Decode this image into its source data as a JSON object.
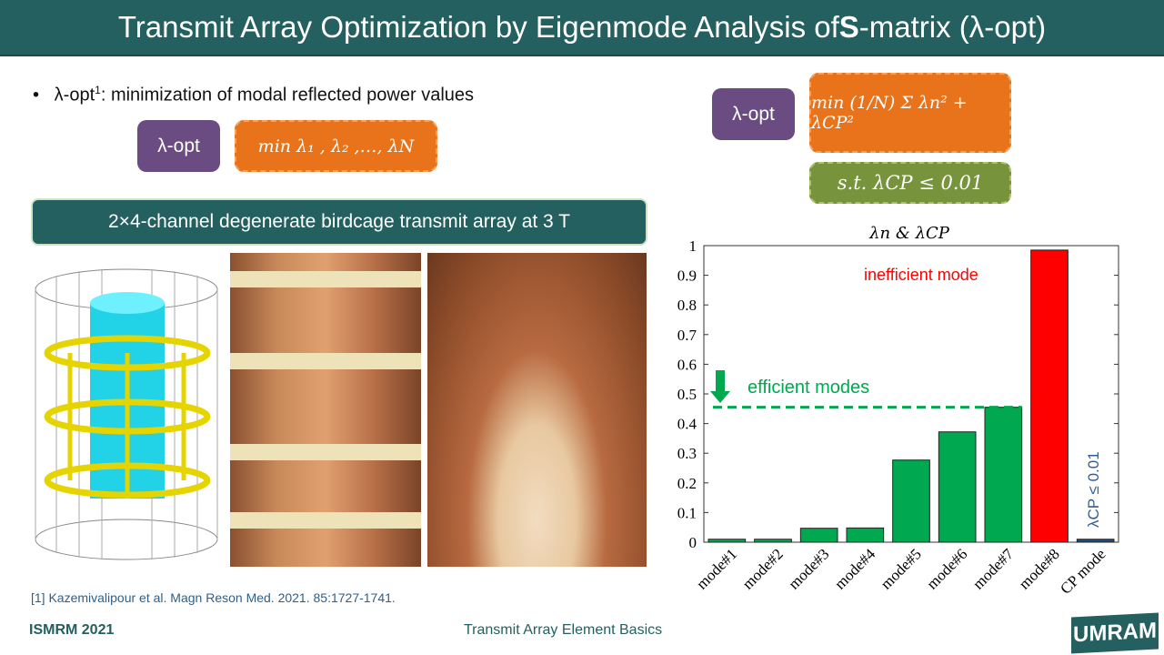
{
  "header": {
    "title_pre": "Transmit Array Optimization by Eigenmode Analysis of ",
    "title_bold": "S",
    "title_post": "-matrix (λ-opt)"
  },
  "bullet": {
    "text": "λ-opt",
    "sup": "1",
    "rest": ": minimization of modal reflected power values"
  },
  "left_formula": {
    "label": "λ-opt",
    "expr": "min   λ₁ , λ₂ ,…, λN"
  },
  "right_formula": {
    "label": "λ-opt",
    "expr": "min  (1/N) Σ λn² + λCP²",
    "constraint": "s.t.   λCP ≤ 0.01"
  },
  "banner": "2×4-channel degenerate birdcage transmit array at 3 T",
  "reference": "[1] Kazemivalipour et al. Magn Reson Med. 2021. 85:1727-1741.",
  "footer": {
    "left": "ISMRM 2021",
    "center": "Transmit Array Element Basics",
    "logo": "UMRAM"
  },
  "chart_data": {
    "type": "bar",
    "title": "λn & λCP",
    "categories": [
      "mode#1",
      "mode#2",
      "mode#3",
      "mode#4",
      "mode#5",
      "mode#6",
      "mode#7",
      "mode#8",
      "CP mode"
    ],
    "values": [
      0.01,
      0.01,
      0.047,
      0.048,
      0.277,
      0.372,
      0.455,
      0.985,
      0.01
    ],
    "colors": [
      "#00a84f",
      "#00a84f",
      "#00a84f",
      "#00a84f",
      "#00a84f",
      "#00a84f",
      "#00a84f",
      "#ff0000",
      "#1f4e79"
    ],
    "ylim": [
      0,
      1
    ],
    "yticks": [
      "0",
      "0.1",
      "0.2",
      "0.3",
      "0.4",
      "0.5",
      "0.6",
      "0.7",
      "0.8",
      "0.9",
      "1"
    ],
    "annotations": {
      "inefficient": "inefficient mode",
      "efficient": "efficient modes",
      "threshold": 0.455,
      "cp": "λCP ≤ 0.01"
    }
  }
}
